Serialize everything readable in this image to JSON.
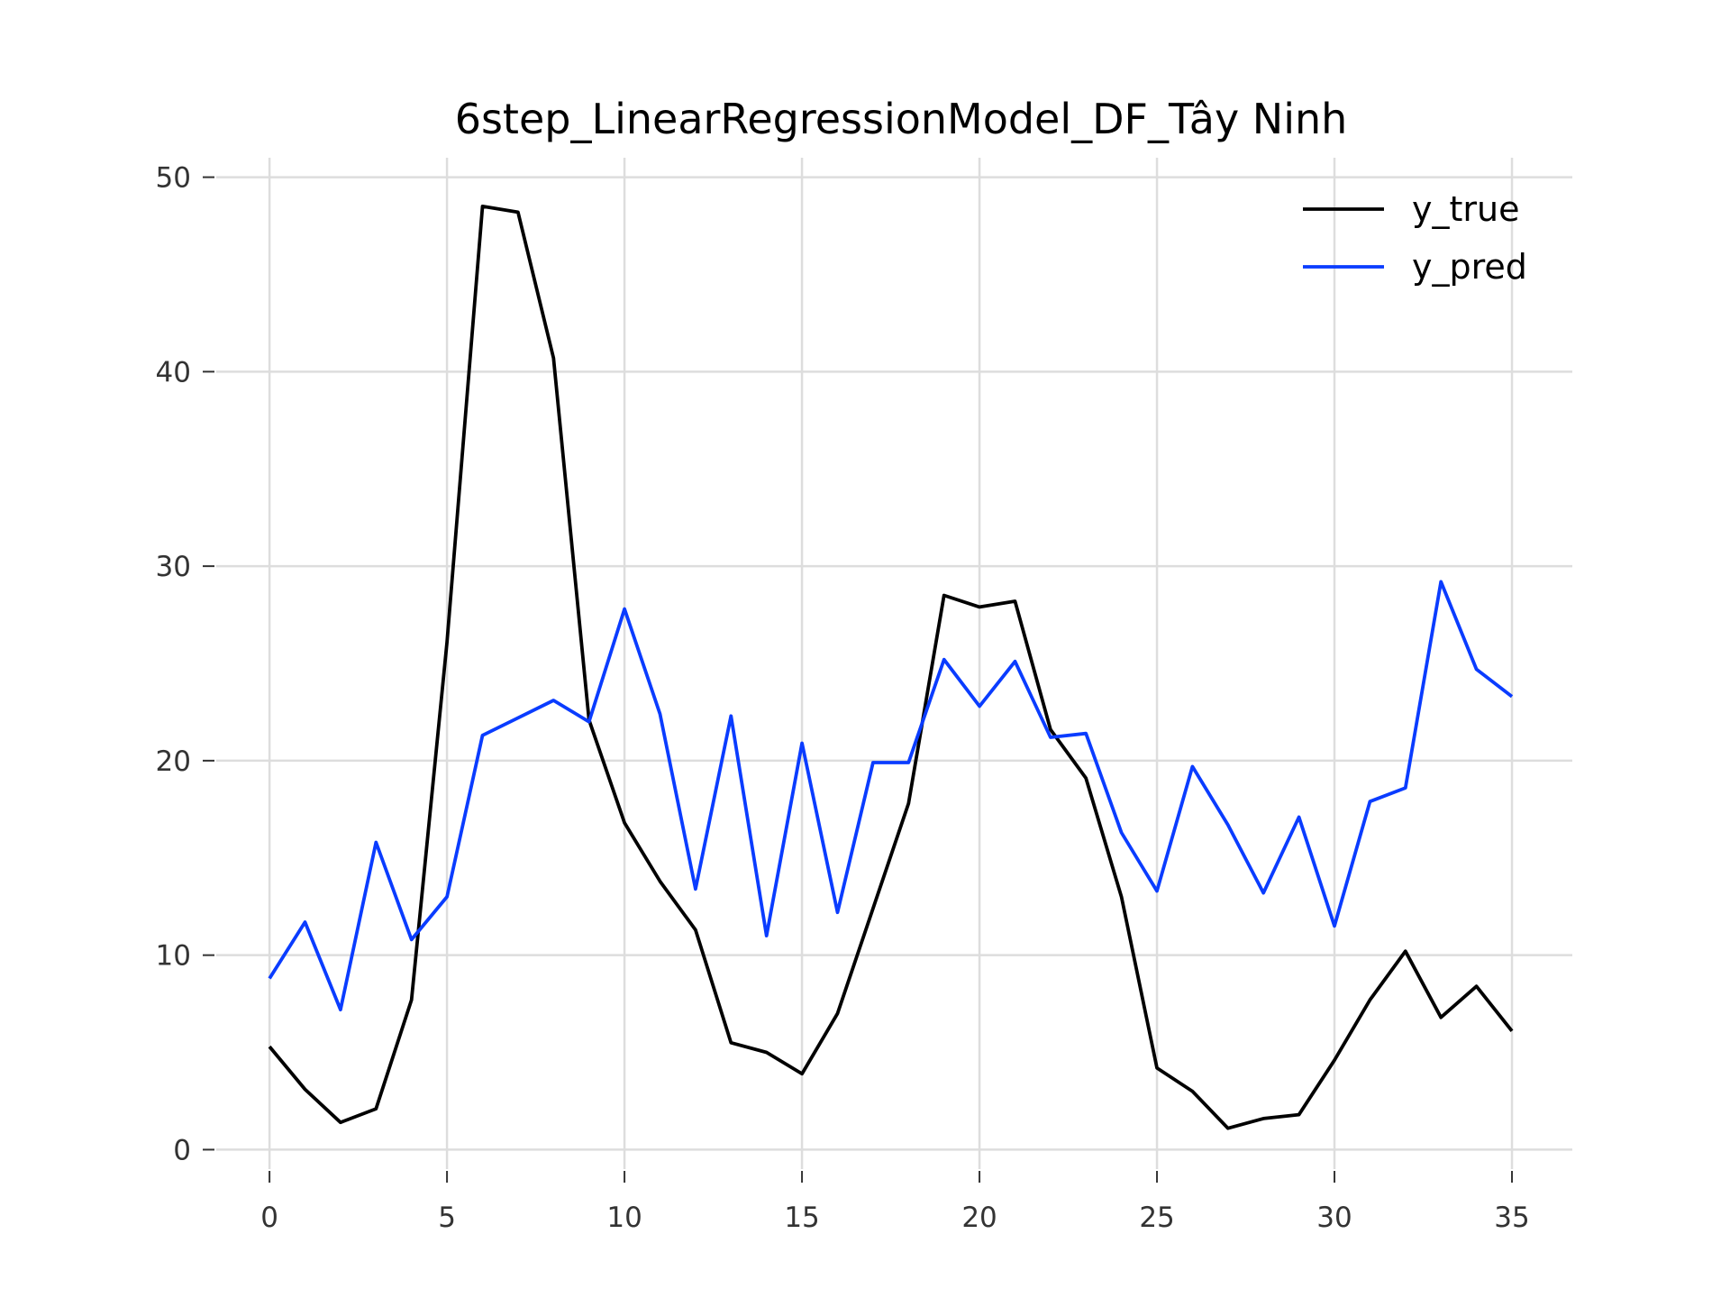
{
  "chart_data": {
    "type": "line",
    "title": "6step_LinearRegressionModel_DF_Tây Ninh",
    "xlabel": "",
    "ylabel": "",
    "xlim": [
      -1.5,
      36.7
    ],
    "ylim": [
      -1.0,
      51.0
    ],
    "x_ticks": [
      0,
      5,
      10,
      15,
      20,
      25,
      30,
      35
    ],
    "y_ticks": [
      0,
      10,
      20,
      30,
      40,
      50
    ],
    "grid": true,
    "legend_position": "top-right",
    "x": [
      0,
      1,
      2,
      3,
      4,
      5,
      6,
      7,
      8,
      9,
      10,
      11,
      12,
      13,
      14,
      15,
      16,
      17,
      18,
      19,
      20,
      21,
      22,
      23,
      24,
      25,
      26,
      27,
      28,
      29,
      30,
      31,
      32,
      33,
      34,
      35
    ],
    "series": [
      {
        "name": "y_true",
        "color": "#000000",
        "values": [
          5.3,
          3.1,
          1.4,
          2.1,
          7.7,
          26.1,
          48.5,
          48.2,
          40.7,
          22.1,
          16.8,
          13.8,
          11.3,
          5.5,
          5.0,
          3.9,
          7.0,
          12.4,
          17.8,
          28.5,
          27.9,
          28.2,
          21.6,
          19.1,
          13.0,
          4.2,
          3.0,
          1.1,
          1.6,
          1.8,
          4.6,
          7.7,
          10.2,
          6.8,
          8.4,
          6.1
        ]
      },
      {
        "name": "y_pred",
        "color": "#0a3cff",
        "values": [
          8.8,
          11.7,
          7.2,
          15.8,
          10.8,
          13.0,
          21.3,
          22.2,
          23.1,
          22.0,
          27.8,
          22.4,
          13.4,
          22.3,
          11.0,
          20.9,
          12.2,
          19.9,
          19.9,
          25.2,
          22.8,
          25.1,
          21.2,
          21.4,
          16.3,
          13.3,
          19.7,
          16.7,
          13.2,
          17.1,
          11.5,
          17.9,
          18.6,
          29.2,
          24.7,
          23.3
        ]
      }
    ]
  }
}
